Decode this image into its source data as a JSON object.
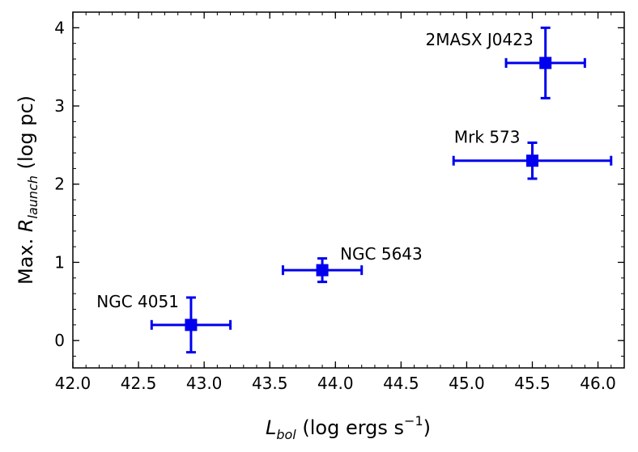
{
  "chart_data": {
    "type": "scatter",
    "xlabel": {
      "main": "L",
      "sub": "bol",
      "units": " (log ergs s",
      "sup": "−1",
      "close": ")"
    },
    "ylabel": {
      "prefix": "Max. ",
      "main": "R",
      "sub": "launch",
      "units": " (log pc)"
    },
    "xlim": [
      42.0,
      46.2
    ],
    "ylim": [
      -0.35,
      4.2
    ],
    "xticks": [
      42.0,
      42.5,
      43.0,
      43.5,
      44.0,
      44.5,
      45.0,
      45.5,
      46.0
    ],
    "xtick_labels": [
      "42.0",
      "42.5",
      "43.0",
      "43.5",
      "44.0",
      "44.5",
      "45.0",
      "45.5",
      "46.0"
    ],
    "yticks": [
      0,
      1,
      2,
      3,
      4
    ],
    "ytick_labels": [
      "0",
      "1",
      "2",
      "3",
      "4"
    ],
    "grid": false,
    "marker_color": "#0000ee",
    "points": [
      {
        "label": "NGC 4051",
        "x": 42.9,
        "y": 0.2,
        "x_lo": 42.6,
        "x_hi": 43.2,
        "y_lo": -0.15,
        "y_hi": 0.55,
        "label_anchor": "end"
      },
      {
        "label": "NGC 5643",
        "x": 43.9,
        "y": 0.9,
        "x_lo": 43.6,
        "x_hi": 44.2,
        "y_lo": 0.75,
        "y_hi": 1.05,
        "label_anchor": "start"
      },
      {
        "label": "Mrk 573",
        "x": 45.5,
        "y": 2.3,
        "x_lo": 44.9,
        "x_hi": 46.1,
        "y_lo": 2.07,
        "y_hi": 2.53,
        "label_anchor": "end"
      },
      {
        "label": "2MASX J0423",
        "x": 45.6,
        "y": 3.55,
        "x_lo": 45.3,
        "x_hi": 45.9,
        "y_lo": 3.1,
        "y_hi": 4.0,
        "label_anchor": "end"
      }
    ]
  }
}
